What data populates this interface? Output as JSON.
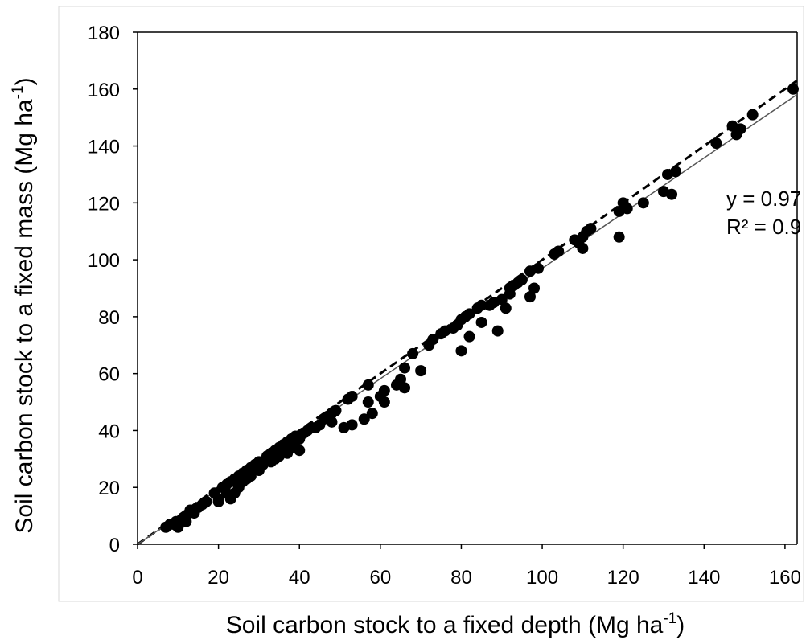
{
  "chart_data": {
    "type": "scatter",
    "xlabel": "Soil carbon stock to a fixed depth",
    "xlabel_unit_prefix": "(Mg ha",
    "xlabel_unit_exp": "-1",
    "xlabel_unit_suffix": ")",
    "ylabel": "Soil carbon stock to a fixed mass",
    "ylabel_unit_prefix": "(Mg ha",
    "ylabel_unit_exp": "-1",
    "ylabel_unit_suffix": ")",
    "xlim": [
      0,
      163
    ],
    "ylim": [
      0,
      180
    ],
    "x_ticks": [
      "0",
      "20",
      "40",
      "60",
      "80",
      "100",
      "120",
      "140",
      "160"
    ],
    "y_ticks": [
      "0",
      "20",
      "40",
      "60",
      "80",
      "100",
      "120",
      "140",
      "160",
      "180"
    ],
    "grid": false,
    "annotations": [
      "y = 0.97",
      "R² = 0.9"
    ],
    "reference_lines": [
      {
        "style": "dashed",
        "slope": 1.0,
        "intercept": 0
      },
      {
        "style": "solid",
        "slope": 0.97,
        "intercept": 0
      }
    ],
    "points": [
      [
        7,
        6
      ],
      [
        8,
        7
      ],
      [
        9,
        7
      ],
      [
        9.5,
        8
      ],
      [
        10,
        6
      ],
      [
        11,
        9
      ],
      [
        12,
        10
      ],
      [
        12,
        8
      ],
      [
        13,
        12
      ],
      [
        14,
        11
      ],
      [
        15,
        13
      ],
      [
        16,
        14
      ],
      [
        17,
        15
      ],
      [
        19,
        18
      ],
      [
        20,
        16
      ],
      [
        20,
        15
      ],
      [
        21,
        20
      ],
      [
        22,
        21
      ],
      [
        22,
        18
      ],
      [
        23,
        22
      ],
      [
        23,
        16
      ],
      [
        24,
        23
      ],
      [
        24,
        18
      ],
      [
        25,
        24
      ],
      [
        25,
        20
      ],
      [
        26,
        22
      ],
      [
        26,
        25
      ],
      [
        27,
        26
      ],
      [
        27,
        23
      ],
      [
        28,
        27
      ],
      [
        28,
        24
      ],
      [
        29,
        28
      ],
      [
        30,
        29
      ],
      [
        30,
        26
      ],
      [
        31,
        28
      ],
      [
        32,
        31
      ],
      [
        33,
        32
      ],
      [
        33,
        29
      ],
      [
        34,
        30
      ],
      [
        34,
        33
      ],
      [
        35,
        34
      ],
      [
        35,
        31
      ],
      [
        36,
        35
      ],
      [
        36,
        33
      ],
      [
        37,
        36
      ],
      [
        37,
        32
      ],
      [
        38,
        37
      ],
      [
        38,
        35
      ],
      [
        39,
        38
      ],
      [
        39,
        34
      ],
      [
        40,
        33
      ],
      [
        40,
        37
      ],
      [
        41,
        39
      ],
      [
        42,
        40
      ],
      [
        43,
        41
      ],
      [
        44,
        41
      ],
      [
        45,
        42
      ],
      [
        46,
        44
      ],
      [
        47,
        45
      ],
      [
        48,
        46
      ],
      [
        48,
        43
      ],
      [
        49,
        47
      ],
      [
        51,
        41
      ],
      [
        52,
        51
      ],
      [
        53,
        52
      ],
      [
        53,
        42
      ],
      [
        56,
        44
      ],
      [
        57,
        50
      ],
      [
        57,
        56
      ],
      [
        58,
        46
      ],
      [
        60,
        52
      ],
      [
        61,
        54
      ],
      [
        61,
        50
      ],
      [
        64,
        56
      ],
      [
        65,
        58
      ],
      [
        66,
        55
      ],
      [
        66,
        62
      ],
      [
        68,
        67
      ],
      [
        70,
        61
      ],
      [
        72,
        70
      ],
      [
        73,
        72
      ],
      [
        75,
        74
      ],
      [
        76,
        75
      ],
      [
        78,
        76
      ],
      [
        79,
        77
      ],
      [
        80,
        68
      ],
      [
        80,
        79
      ],
      [
        81,
        80
      ],
      [
        82,
        81
      ],
      [
        82,
        73
      ],
      [
        84,
        83
      ],
      [
        85,
        84
      ],
      [
        85,
        78
      ],
      [
        87,
        84
      ],
      [
        88,
        85
      ],
      [
        89,
        75
      ],
      [
        90,
        86
      ],
      [
        91,
        83
      ],
      [
        92,
        88
      ],
      [
        92,
        90
      ],
      [
        93,
        91
      ],
      [
        94,
        92
      ],
      [
        95,
        93
      ],
      [
        97,
        87
      ],
      [
        97,
        96
      ],
      [
        98,
        90
      ],
      [
        99,
        97
      ],
      [
        103,
        102
      ],
      [
        104,
        103
      ],
      [
        108,
        107
      ],
      [
        109,
        106
      ],
      [
        110,
        104
      ],
      [
        110,
        108
      ],
      [
        111,
        110
      ],
      [
        112,
        111
      ],
      [
        119,
        117
      ],
      [
        119,
        108
      ],
      [
        120,
        120
      ],
      [
        121,
        118
      ],
      [
        125,
        120
      ],
      [
        130,
        124
      ],
      [
        131,
        130
      ],
      [
        132,
        123
      ],
      [
        133,
        131
      ],
      [
        143,
        141
      ],
      [
        147,
        147
      ],
      [
        148,
        144
      ],
      [
        149,
        146
      ],
      [
        152,
        151
      ],
      [
        162,
        160
      ]
    ]
  }
}
